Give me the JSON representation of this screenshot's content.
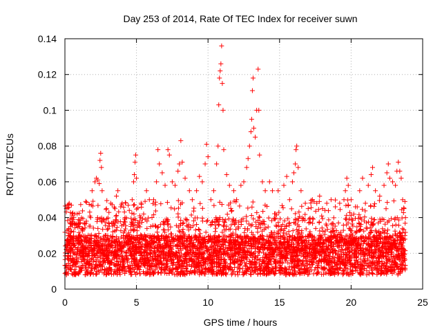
{
  "chart_data": {
    "type": "scatter",
    "title": "Day 253 of 2014, Rate Of TEC Index for receiver suwn",
    "xlabel": "GPS time / hours",
    "ylabel": "ROTI / TECUs",
    "xlim": [
      0,
      25
    ],
    "ylim": [
      0,
      0.14
    ],
    "xticks": [
      0,
      5,
      10,
      15,
      20,
      25
    ],
    "yticks": [
      0,
      0.02,
      0.04,
      0.06,
      0.08,
      0.1,
      0.12,
      0.14
    ],
    "xtick_labels": [
      "0",
      "5",
      "10",
      "15",
      "20",
      "25"
    ],
    "ytick_labels": [
      "0",
      "0.02",
      "0.04",
      "0.06",
      "0.08",
      "0.1",
      "0.12",
      "0.14"
    ],
    "grid": true,
    "marker": "plus",
    "color": "#ff0000",
    "series": [
      {
        "name": "ROTI",
        "points": [
          [
            0.1,
            0.045
          ],
          [
            0.2,
            0.047
          ],
          [
            0.3,
            0.048
          ],
          [
            0.5,
            0.041
          ],
          [
            0.6,
            0.04
          ],
          [
            0.8,
            0.036
          ],
          [
            1.0,
            0.035
          ],
          [
            1.2,
            0.034
          ],
          [
            1.5,
            0.038
          ],
          [
            1.8,
            0.04
          ],
          [
            1.9,
            0.055
          ],
          [
            2.1,
            0.06
          ],
          [
            2.2,
            0.062
          ],
          [
            2.3,
            0.061
          ],
          [
            2.4,
            0.059
          ],
          [
            2.45,
            0.072
          ],
          [
            2.5,
            0.076
          ],
          [
            2.55,
            0.068
          ],
          [
            2.6,
            0.055
          ],
          [
            2.9,
            0.045
          ],
          [
            3.2,
            0.048
          ],
          [
            3.5,
            0.045
          ],
          [
            3.6,
            0.052
          ],
          [
            3.7,
            0.055
          ],
          [
            3.9,
            0.046
          ],
          [
            4.0,
            0.048
          ],
          [
            4.2,
            0.04
          ],
          [
            4.5,
            0.044
          ],
          [
            4.7,
            0.05
          ],
          [
            4.8,
            0.06
          ],
          [
            4.85,
            0.064
          ],
          [
            4.9,
            0.071
          ],
          [
            4.95,
            0.075
          ],
          [
            5.0,
            0.062
          ],
          [
            5.3,
            0.04
          ],
          [
            5.5,
            0.042
          ],
          [
            5.7,
            0.055
          ],
          [
            5.9,
            0.05
          ],
          [
            6.2,
            0.05
          ],
          [
            6.4,
            0.06
          ],
          [
            6.5,
            0.078
          ],
          [
            6.6,
            0.07
          ],
          [
            6.8,
            0.065
          ],
          [
            7.0,
            0.058
          ],
          [
            7.2,
            0.078
          ],
          [
            7.3,
            0.075
          ],
          [
            7.5,
            0.06
          ],
          [
            7.7,
            0.058
          ],
          [
            7.9,
            0.066
          ],
          [
            8.0,
            0.07
          ],
          [
            8.1,
            0.083
          ],
          [
            8.2,
            0.071
          ],
          [
            8.4,
            0.062
          ],
          [
            8.7,
            0.055
          ],
          [
            8.9,
            0.05
          ],
          [
            9.2,
            0.055
          ],
          [
            9.4,
            0.063
          ],
          [
            9.6,
            0.06
          ],
          [
            9.8,
            0.07
          ],
          [
            9.9,
            0.081
          ],
          [
            10.0,
            0.074
          ],
          [
            10.2,
            0.05
          ],
          [
            10.4,
            0.055
          ],
          [
            10.6,
            0.07
          ],
          [
            10.7,
            0.08
          ],
          [
            10.75,
            0.103
          ],
          [
            10.8,
            0.118
          ],
          [
            10.85,
            0.122
          ],
          [
            10.9,
            0.126
          ],
          [
            10.95,
            0.136
          ],
          [
            11.0,
            0.115
          ],
          [
            11.05,
            0.1
          ],
          [
            11.1,
            0.078
          ],
          [
            11.3,
            0.064
          ],
          [
            11.5,
            0.058
          ],
          [
            11.8,
            0.055
          ],
          [
            12.0,
            0.05
          ],
          [
            12.3,
            0.058
          ],
          [
            12.5,
            0.06
          ],
          [
            12.7,
            0.068
          ],
          [
            12.8,
            0.073
          ],
          [
            12.9,
            0.08
          ],
          [
            13.0,
            0.088
          ],
          [
            13.05,
            0.095
          ],
          [
            13.1,
            0.111
          ],
          [
            13.15,
            0.118
          ],
          [
            13.2,
            0.09
          ],
          [
            13.3,
            0.085
          ],
          [
            13.4,
            0.1
          ],
          [
            13.5,
            0.123
          ],
          [
            13.55,
            0.1
          ],
          [
            13.6,
            0.075
          ],
          [
            13.8,
            0.06
          ],
          [
            14.0,
            0.055
          ],
          [
            14.3,
            0.06
          ],
          [
            14.5,
            0.055
          ],
          [
            14.9,
            0.055
          ],
          [
            15.3,
            0.058
          ],
          [
            15.5,
            0.063
          ],
          [
            15.7,
            0.05
          ],
          [
            15.9,
            0.06
          ],
          [
            16.0,
            0.065
          ],
          [
            16.1,
            0.07
          ],
          [
            16.15,
            0.078
          ],
          [
            16.2,
            0.08
          ],
          [
            16.3,
            0.068
          ],
          [
            16.5,
            0.055
          ],
          [
            16.8,
            0.048
          ],
          [
            17.0,
            0.045
          ],
          [
            17.3,
            0.05
          ],
          [
            17.6,
            0.048
          ],
          [
            17.8,
            0.052
          ],
          [
            18.0,
            0.045
          ],
          [
            18.3,
            0.048
          ],
          [
            18.6,
            0.05
          ],
          [
            18.9,
            0.046
          ],
          [
            19.2,
            0.048
          ],
          [
            19.5,
            0.05
          ],
          [
            19.6,
            0.055
          ],
          [
            19.7,
            0.062
          ],
          [
            19.8,
            0.058
          ],
          [
            20.0,
            0.05
          ],
          [
            20.3,
            0.046
          ],
          [
            20.6,
            0.055
          ],
          [
            20.8,
            0.062
          ],
          [
            21.0,
            0.048
          ],
          [
            21.2,
            0.058
          ],
          [
            21.4,
            0.064
          ],
          [
            21.5,
            0.068
          ],
          [
            21.7,
            0.055
          ],
          [
            22.0,
            0.052
          ],
          [
            22.3,
            0.058
          ],
          [
            22.5,
            0.065
          ],
          [
            22.6,
            0.07
          ],
          [
            22.7,
            0.062
          ],
          [
            22.9,
            0.06
          ],
          [
            23.1,
            0.058
          ],
          [
            23.2,
            0.066
          ],
          [
            23.3,
            0.071
          ],
          [
            23.4,
            0.066
          ],
          [
            23.5,
            0.062
          ],
          [
            23.6,
            0.05
          ],
          [
            23.7,
            0.045
          ],
          [
            23.8,
            0.04
          ]
        ]
      }
    ]
  },
  "colors": {
    "marker": "#ff0000",
    "grid": "#b0b0b0",
    "axis": "#000000",
    "background": "#ffffff"
  }
}
